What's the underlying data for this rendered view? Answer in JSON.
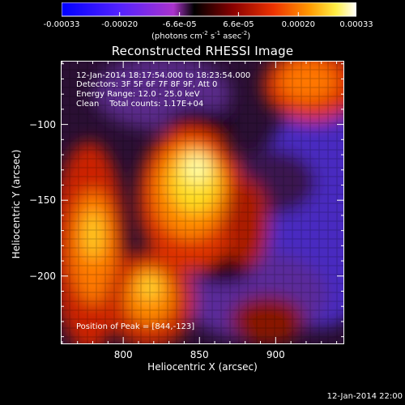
{
  "colorbar": {
    "ticks": [
      "-0.00033",
      "-0.00020",
      "-6.6e-05",
      "6.6e-05",
      "0.00020",
      "0.00033"
    ],
    "tick_values": [
      -0.00033,
      -0.0002,
      -6.6e-05,
      6.6e-05,
      0.0002,
      0.00033
    ],
    "range": [
      -0.00033,
      0.00033
    ],
    "units_main": "(photons cm",
    "units_exp1": "-2",
    "units_mid1": " s",
    "units_exp2": "-1",
    "units_mid2": " asec",
    "units_exp3": "-2",
    "units_end": ")"
  },
  "chart_data": {
    "type": "heatmap",
    "title": "Reconstructed RHESSI Image",
    "xlabel": "Heliocentric X (arcsec)",
    "ylabel": "Heliocentric Y (arcsec)",
    "xlim": [
      759,
      945
    ],
    "ylim": [
      -245,
      -58
    ],
    "x_ticks": [
      800,
      850,
      900
    ],
    "y_ticks": [
      -100,
      -150,
      -200
    ],
    "colormap": "RHESSI hot (blue-purple-black-red-yellow-white)",
    "color_stops": [
      "#0000ff",
      "#6633ff",
      "#9933cc",
      "#330033",
      "#000000",
      "#660000",
      "#cc1100",
      "#ff6600",
      "#ffcc00",
      "#ffff99",
      "#ffffff"
    ],
    "peak_position": [
      844,
      -123
    ],
    "bright_regions": [
      {
        "x": 845,
        "y": -130,
        "level": "white-yellow"
      },
      {
        "x": 800,
        "y": -165,
        "level": "yellow-orange"
      },
      {
        "x": 810,
        "y": -190,
        "level": "orange"
      },
      {
        "x": 905,
        "y": -70,
        "level": "orange-red"
      }
    ],
    "dim_regions": [
      {
        "x": 930,
        "y": -175,
        "level": "purple-blue"
      },
      {
        "x": 870,
        "y": -210,
        "level": "purple"
      },
      {
        "x": 830,
        "y": -95,
        "level": "purple"
      }
    ]
  },
  "info_lines": [
    "12-Jan-2014 18:17:54.000 to 18:23:54.000",
    "Detectors: 3F 5F 6F 7F 8F 9F, Att 0",
    "Energy Range: 12.0 - 25.0 keV",
    "Clean    Total counts: 1.17E+04"
  ],
  "peak_label": "Position of Peak = [844,-123]",
  "footer": "12-Jan-2014 22:00"
}
